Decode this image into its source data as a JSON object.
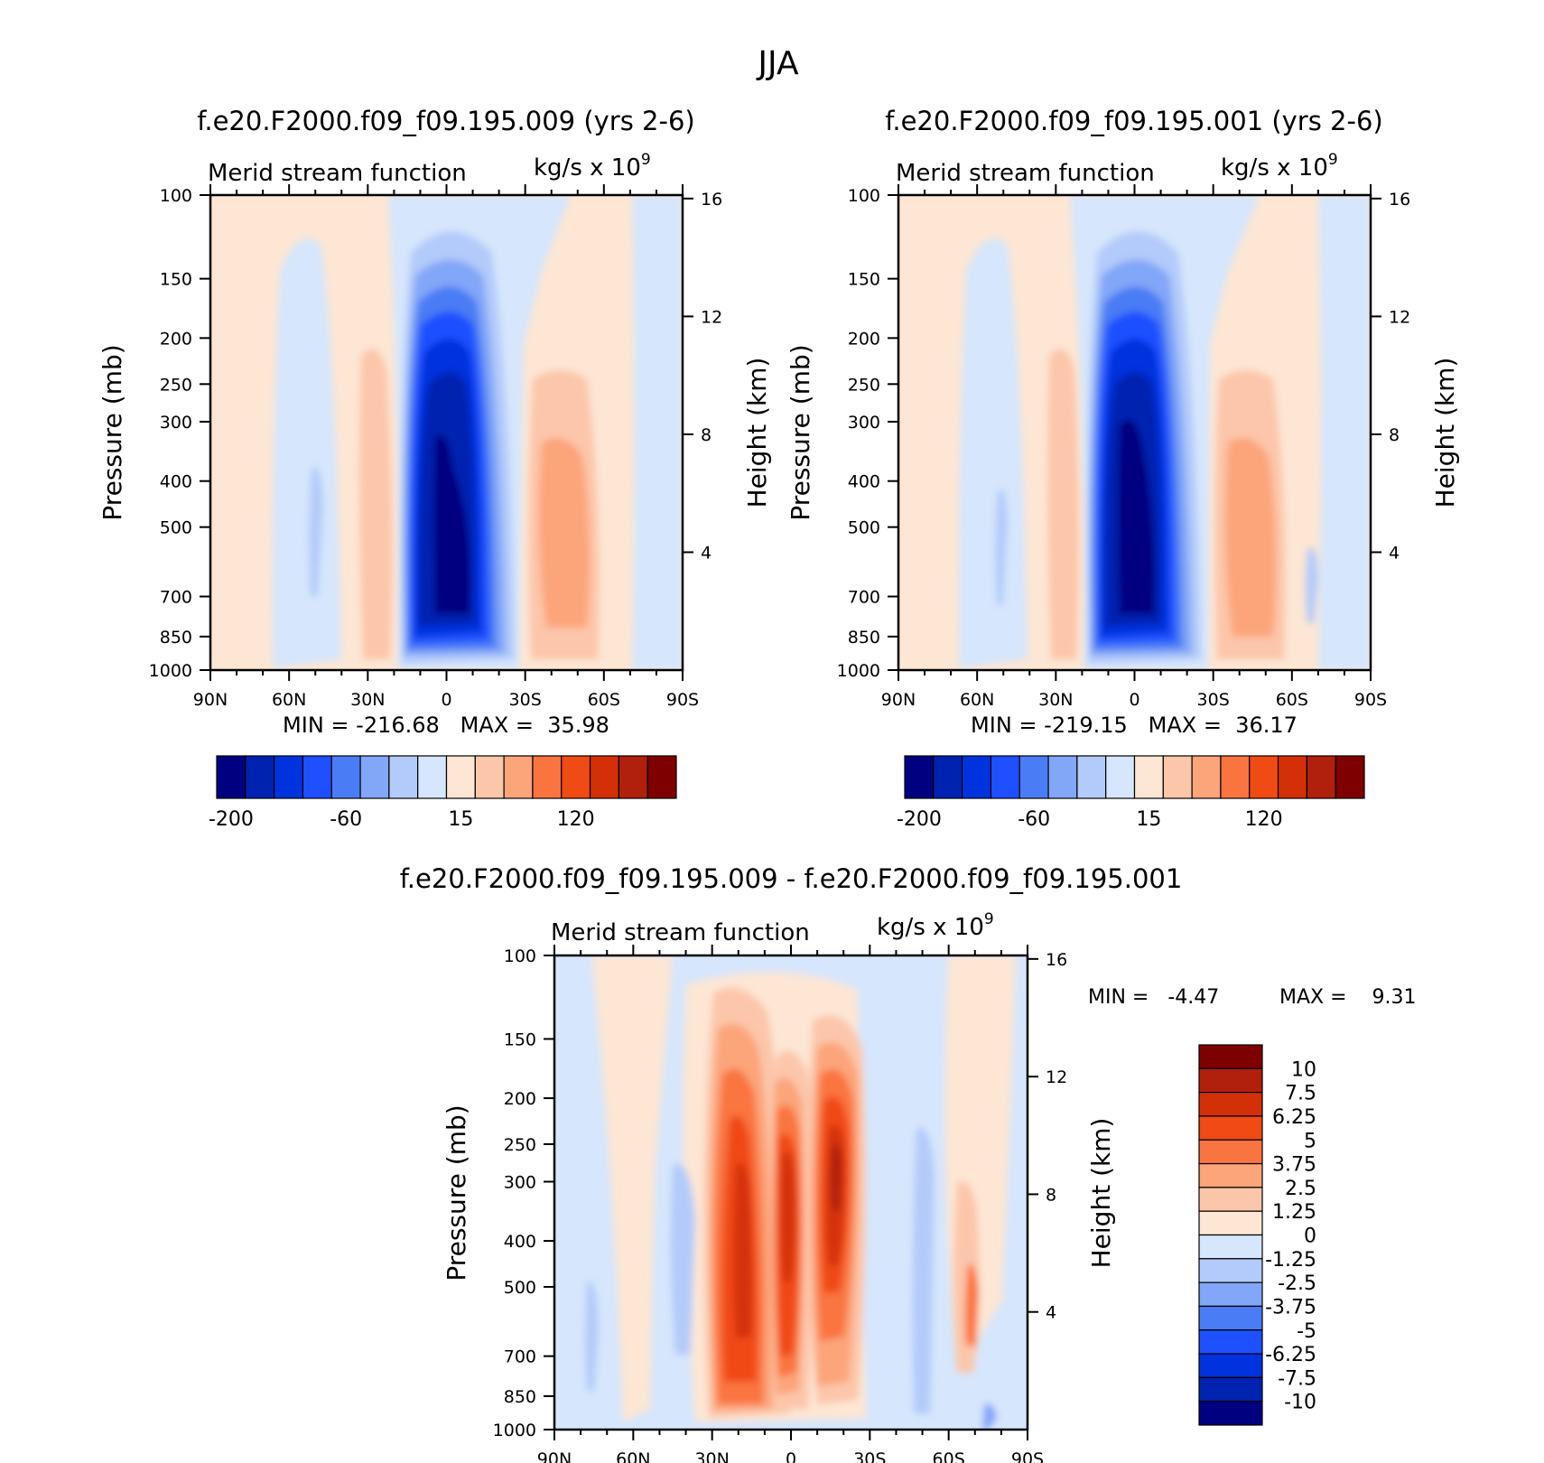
{
  "figure": {
    "title": "JJA"
  },
  "panels": [
    {
      "id": "top-left",
      "title": "f.e20.F2000.f09_f09.195.009 (yrs 2-6)",
      "subtitle_left": "Merid stream function",
      "subtitle_right": "kg/s x 10",
      "subtitle_exp": "9",
      "ylabel": "Pressure (mb)",
      "ylabel_right": "Height (km)",
      "minmax": "MIN = -216.68   MAX =  35.98"
    },
    {
      "id": "top-right",
      "title": "f.e20.F2000.f09_f09.195.001 (yrs 2-6)",
      "subtitle_left": "Merid stream function",
      "subtitle_right": "kg/s x 10",
      "subtitle_exp": "9",
      "ylabel": "Pressure (mb)",
      "ylabel_right": "Height (km)",
      "minmax": "MIN = -219.15   MAX =  36.17"
    },
    {
      "id": "bottom",
      "title": "f.e20.F2000.f09_f09.195.009 - f.e20.F2000.f09_f09.195.001",
      "subtitle_left": "Merid stream function",
      "subtitle_right": "kg/s x 10",
      "subtitle_exp": "9",
      "ylabel": "Pressure (mb)",
      "ylabel_right": "Height (km)",
      "minmax_min": "MIN =   -4.47",
      "minmax_max": "MAX =    9.31"
    }
  ],
  "axes": {
    "x_ticks": [
      "90N",
      "60N",
      "30N",
      "0",
      "30S",
      "60S",
      "90S"
    ],
    "x_values": [
      90,
      60,
      30,
      0,
      -30,
      -60,
      -90
    ],
    "y_ticks": [
      "100",
      "150",
      "200",
      "250",
      "300",
      "400",
      "500",
      "700",
      "850",
      "1000"
    ],
    "y_values": [
      100,
      150,
      200,
      250,
      300,
      400,
      500,
      700,
      850,
      1000
    ],
    "y_scale": "log",
    "ylim": [
      100,
      1000
    ],
    "height_ticks": [
      "16",
      "12",
      "8",
      "4"
    ],
    "height_values": [
      16,
      12,
      8,
      4
    ]
  },
  "colorbars": {
    "top_labels": [
      "-200",
      "-60",
      "15",
      "120"
    ],
    "top_colors": [
      "#000080",
      "#0022b0",
      "#0033dd",
      "#1e50ff",
      "#4a7cf5",
      "#82a6f8",
      "#b3cbfa",
      "#d6e6fc",
      "#fde6d4",
      "#fcc6aa",
      "#fca47a",
      "#fa7440",
      "#f04a15",
      "#d43008",
      "#b0200c",
      "#7f0000"
    ],
    "bottom_labels": [
      "10",
      "7.5",
      "6.25",
      "5",
      "3.75",
      "2.5",
      "1.25",
      "0",
      "-1.25",
      "-2.5",
      "-3.75",
      "-5",
      "-6.25",
      "-7.5",
      "-10"
    ],
    "bottom_colors": [
      "#7f0000",
      "#b0200c",
      "#d43008",
      "#f04a15",
      "#fa7440",
      "#fca47a",
      "#fcc6aa",
      "#fde6d4",
      "#d6e6fc",
      "#b3cbfa",
      "#82a6f8",
      "#4a7cf5",
      "#1e50ff",
      "#0033dd",
      "#0022b0",
      "#000080"
    ]
  },
  "chart_data": [
    {
      "type": "heatmap",
      "title": "f.e20.F2000.f09_f09.195.009 (yrs 2-6)",
      "xlabel": "",
      "ylabel": "Pressure (mb)",
      "xlim": [
        90,
        -90
      ],
      "ylim": [
        100,
        1000
      ],
      "min": -216.68,
      "max": 35.98,
      "features": [
        {
          "lat": 5,
          "p": 500,
          "value": -216.68,
          "kind": "min"
        },
        {
          "lat": -42,
          "p": 500,
          "value": 35.98,
          "kind": "max"
        },
        {
          "lat": 24,
          "p": 450,
          "value": 15,
          "kind": "positive cell"
        },
        {
          "lat": 50,
          "p": 400,
          "value": -15,
          "kind": "negative cell"
        }
      ]
    },
    {
      "type": "heatmap",
      "title": "f.e20.F2000.f09_f09.195.001 (yrs 2-6)",
      "xlabel": "",
      "ylabel": "Pressure (mb)",
      "xlim": [
        90,
        -90
      ],
      "ylim": [
        100,
        1000
      ],
      "min": -219.15,
      "max": 36.17,
      "features": [
        {
          "lat": 5,
          "p": 500,
          "value": -219.15,
          "kind": "min"
        },
        {
          "lat": -42,
          "p": 500,
          "value": 36.17,
          "kind": "max"
        },
        {
          "lat": 24,
          "p": 450,
          "value": 15,
          "kind": "positive cell"
        },
        {
          "lat": 50,
          "p": 400,
          "value": -15,
          "kind": "negative cell"
        }
      ]
    },
    {
      "type": "heatmap",
      "title": "f.e20.F2000.f09_f09.195.009 - f.e20.F2000.f09_f09.195.001",
      "xlabel": "",
      "ylabel": "Pressure (mb)",
      "xlim": [
        90,
        -90
      ],
      "ylim": [
        100,
        1000
      ],
      "min": -4.47,
      "max": 9.31,
      "features": [
        {
          "lat": 20,
          "p": 450,
          "value": 7.5,
          "kind": "positive cell"
        },
        {
          "lat": 0,
          "p": 350,
          "value": 8,
          "kind": "positive cell"
        },
        {
          "lat": -22,
          "p": 330,
          "value": 9.31,
          "kind": "max"
        },
        {
          "lat": -50,
          "p": 500,
          "value": -4.47,
          "kind": "min"
        },
        {
          "lat": -70,
          "p": 600,
          "value": 5,
          "kind": "positive cell"
        },
        {
          "lat": 38,
          "p": 700,
          "value": -2.5,
          "kind": "negative cell"
        }
      ]
    }
  ]
}
